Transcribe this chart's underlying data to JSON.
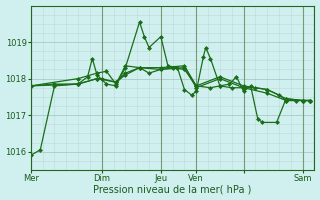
{
  "title": "",
  "xlabel": "Pression niveau de la mer( hPa )",
  "bg_color": "#d0f0f0",
  "grid_color_minor": "#c8d8d8",
  "grid_color_major": "#b8c8c8",
  "vline_color": "#8aaa8a",
  "line_color": "#1a6e1a",
  "xlim": [
    0,
    120
  ],
  "ylim": [
    1015.6,
    1019.9
  ],
  "yticks": [
    1016,
    1017,
    1018,
    1019
  ],
  "xtick_positions": [
    0,
    30,
    55,
    70,
    90,
    115
  ],
  "xtick_labels": [
    "Mer",
    "Dim",
    "Jeu",
    "Ven",
    "",
    "Sam"
  ],
  "vline_positions": [
    0,
    30,
    55,
    70,
    90,
    115,
    120
  ],
  "lines": [
    [
      0,
      1015.9,
      4,
      1016.05,
      10,
      1017.8,
      20,
      1017.85,
      24,
      1018.05,
      26,
      1018.55,
      28,
      1018.1,
      32,
      1017.85,
      36,
      1017.8,
      40,
      1018.3,
      46,
      1019.55,
      48,
      1019.15,
      50,
      1018.85,
      55,
      1019.15,
      58,
      1018.35,
      62,
      1018.3,
      65,
      1017.7,
      68,
      1017.55,
      70,
      1017.65,
      73,
      1018.6,
      74,
      1018.85,
      76,
      1018.55,
      80,
      1017.8,
      84,
      1017.85,
      87,
      1018.05,
      90,
      1017.65,
      93,
      1017.8,
      96,
      1016.9,
      98,
      1016.8,
      104,
      1016.8,
      108,
      1017.45,
      115,
      1017.4,
      118,
      1017.4
    ],
    [
      0,
      1017.8,
      10,
      1017.85,
      20,
      1017.85,
      28,
      1018.0,
      30,
      1018.0,
      36,
      1017.9,
      40,
      1018.1,
      46,
      1018.3,
      50,
      1018.15,
      55,
      1018.25,
      60,
      1018.3,
      65,
      1018.25,
      70,
      1017.8,
      76,
      1017.75,
      80,
      1017.8,
      85,
      1017.75,
      90,
      1017.75,
      95,
      1017.75,
      100,
      1017.7,
      105,
      1017.55,
      108,
      1017.4,
      112,
      1017.4,
      115,
      1017.4,
      118,
      1017.4
    ],
    [
      0,
      1017.8,
      20,
      1017.85,
      28,
      1018.0,
      36,
      1017.9,
      40,
      1018.15,
      46,
      1018.3,
      55,
      1018.25,
      65,
      1018.3,
      70,
      1017.75,
      80,
      1018.0,
      90,
      1017.75,
      100,
      1017.6,
      108,
      1017.4,
      115,
      1017.4,
      118,
      1017.4
    ],
    [
      0,
      1017.8,
      20,
      1018.0,
      28,
      1018.15,
      32,
      1018.2,
      36,
      1017.85,
      40,
      1018.35,
      46,
      1018.3,
      55,
      1018.3,
      65,
      1018.35,
      70,
      1017.8,
      80,
      1018.05,
      90,
      1017.8,
      100,
      1017.7,
      108,
      1017.45,
      115,
      1017.4,
      118,
      1017.4
    ]
  ],
  "markersize": 2.0,
  "linewidth": 0.9
}
